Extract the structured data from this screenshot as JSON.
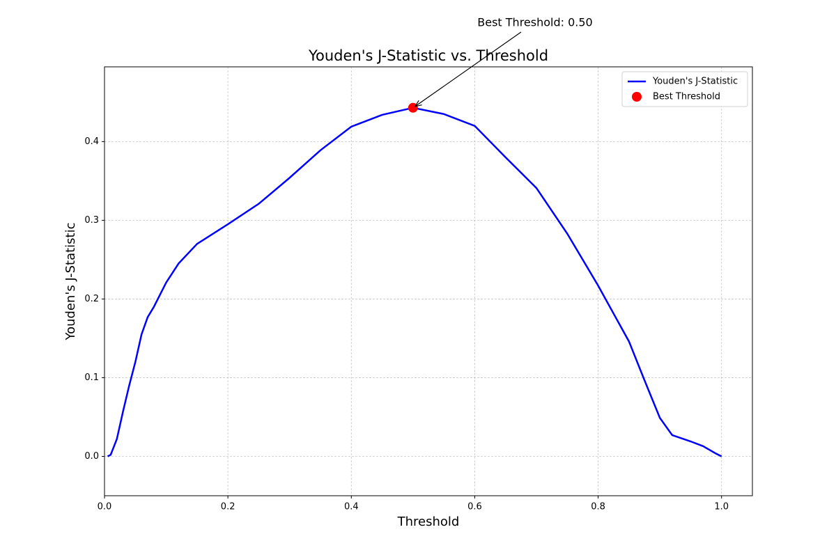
{
  "chart_data": {
    "type": "line",
    "title": "Youden's J-Statistic vs. Threshold",
    "x_label": "Threshold",
    "y_label": "Youden's J-Statistic",
    "xlim": [
      0,
      1.05
    ],
    "ylim": [
      -0.05,
      0.495
    ],
    "xticks": [
      {
        "value": 0,
        "label": "0.0"
      },
      0.2,
      0.4,
      0.6,
      0.8,
      {
        "value": 1,
        "label": "1.0"
      }
    ],
    "yticks": [
      {
        "value": 0,
        "label": "0.0"
      },
      0.1,
      0.2,
      0.3,
      0.4
    ],
    "grid": true,
    "legend": "upper right",
    "series": [
      {
        "name": "Youden's J-Statistic",
        "color": "#0000ff",
        "style": "line",
        "x": [
          0.005,
          0.01,
          0.02,
          0.03,
          0.04,
          0.05,
          0.06,
          0.07,
          0.08,
          0.1,
          0.12,
          0.15,
          0.2,
          0.25,
          0.3,
          0.35,
          0.4,
          0.45,
          0.5,
          0.55,
          0.6,
          0.65,
          0.7,
          0.75,
          0.8,
          0.85,
          0.875,
          0.9,
          0.92,
          0.95,
          0.97,
          0.99,
          1.0
        ],
        "values": [
          0,
          0.002,
          0.022,
          0.057,
          0.09,
          0.12,
          0.155,
          0.177,
          0.19,
          0.221,
          0.245,
          0.27,
          0.295,
          0.321,
          0.354,
          0.389,
          0.419,
          0.434,
          0.443,
          0.435,
          0.42,
          0.38,
          0.341,
          0.283,
          0.217,
          0.146,
          0.097,
          0.049,
          0.027,
          0.019,
          0.013,
          0.004,
          0
        ]
      },
      {
        "name": "Best Threshold",
        "color": "#ff0000",
        "style": "scatter",
        "x": [
          0.5
        ],
        "values": [
          0.443
        ]
      }
    ],
    "annotations": [
      {
        "text": "Best Threshold: 0.50",
        "color": "#006400"
      }
    ]
  }
}
